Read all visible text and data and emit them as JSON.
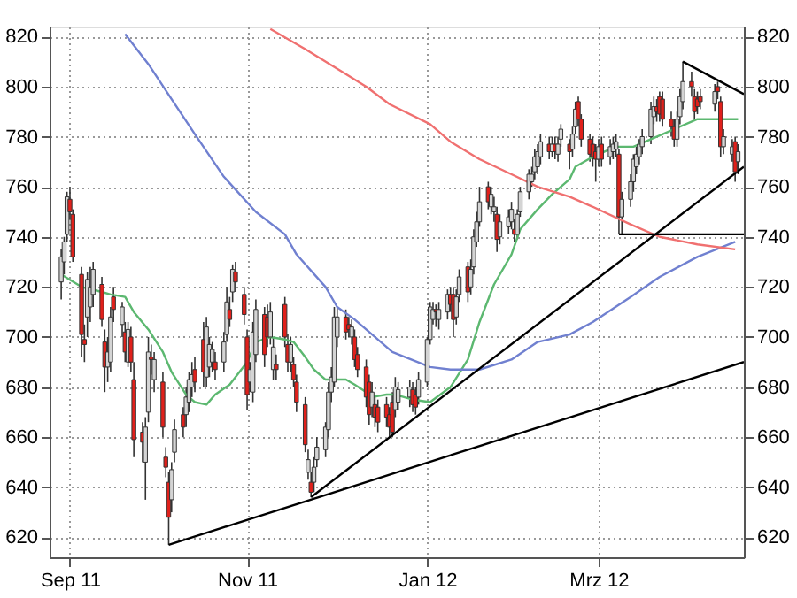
{
  "chart_data": {
    "type": "candlestick",
    "x": [
      "2011-08-29",
      "2011-08-30",
      "2011-08-31",
      "2011-09-01",
      "2011-09-02",
      "2011-09-05",
      "2011-09-06",
      "2011-09-07",
      "2011-09-08",
      "2011-09-09",
      "2011-09-12",
      "2011-09-13",
      "2011-09-14",
      "2011-09-15",
      "2011-09-16",
      "2011-09-19",
      "2011-09-20",
      "2011-09-21",
      "2011-09-22",
      "2011-09-23",
      "2011-09-26",
      "2011-09-27",
      "2011-09-28",
      "2011-09-29",
      "2011-09-30",
      "2011-10-03",
      "2011-10-04",
      "2011-10-05",
      "2011-10-06",
      "2011-10-07",
      "2011-10-10",
      "2011-10-11",
      "2011-10-12",
      "2011-10-13",
      "2011-10-14",
      "2011-10-17",
      "2011-10-18",
      "2011-10-19",
      "2011-10-20",
      "2011-10-21",
      "2011-10-24",
      "2011-10-25",
      "2011-10-26",
      "2011-10-27",
      "2011-10-28",
      "2011-10-31",
      "2011-11-01",
      "2011-11-02",
      "2011-11-03",
      "2011-11-04",
      "2011-11-07",
      "2011-11-08",
      "2011-11-09",
      "2011-11-10",
      "2011-11-11",
      "2011-11-14",
      "2011-11-15",
      "2011-11-16",
      "2011-11-17",
      "2011-11-18",
      "2011-11-21",
      "2011-11-22",
      "2011-11-23",
      "2011-11-24",
      "2011-11-25",
      "2011-11-28",
      "2011-11-29",
      "2011-11-30",
      "2011-12-01",
      "2011-12-02",
      "2011-12-05",
      "2011-12-06",
      "2011-12-07",
      "2011-12-08",
      "2011-12-09",
      "2011-12-12",
      "2011-12-13",
      "2011-12-14",
      "2011-12-15",
      "2011-12-16",
      "2011-12-19",
      "2011-12-20",
      "2011-12-21",
      "2011-12-22",
      "2011-12-23",
      "2011-12-27",
      "2011-12-28",
      "2011-12-29",
      "2011-12-30",
      "2012-01-02",
      "2012-01-03",
      "2012-01-04",
      "2012-01-05",
      "2012-01-06",
      "2012-01-09",
      "2012-01-10",
      "2012-01-11",
      "2012-01-12",
      "2012-01-13",
      "2012-01-16",
      "2012-01-17",
      "2012-01-18",
      "2012-01-19",
      "2012-01-20",
      "2012-01-23",
      "2012-01-24",
      "2012-01-25",
      "2012-01-26",
      "2012-01-27",
      "2012-01-30",
      "2012-01-31",
      "2012-02-01",
      "2012-02-02",
      "2012-02-03",
      "2012-02-06",
      "2012-02-07",
      "2012-02-08",
      "2012-02-09",
      "2012-02-10",
      "2012-02-13",
      "2012-02-14",
      "2012-02-15",
      "2012-02-16",
      "2012-02-17",
      "2012-02-20",
      "2012-02-21",
      "2012-02-22",
      "2012-02-23",
      "2012-02-24",
      "2012-02-27",
      "2012-02-28",
      "2012-02-29",
      "2012-03-01",
      "2012-03-02",
      "2012-03-05",
      "2012-03-06",
      "2012-03-07",
      "2012-03-08",
      "2012-03-09",
      "2012-03-12",
      "2012-03-13",
      "2012-03-14",
      "2012-03-15",
      "2012-03-16",
      "2012-03-19",
      "2012-03-20",
      "2012-03-21",
      "2012-03-22",
      "2012-03-23",
      "2012-03-26",
      "2012-03-27",
      "2012-03-28",
      "2012-03-29",
      "2012-03-30",
      "2012-04-02",
      "2012-04-03",
      "2012-04-04",
      "2012-04-05",
      "2012-04-10",
      "2012-04-11",
      "2012-04-12",
      "2012-04-13",
      "2012-04-16",
      "2012-04-17",
      "2012-04-18"
    ],
    "ohlc": [
      [
        722,
        735,
        715,
        732
      ],
      [
        730,
        740,
        725,
        738
      ],
      [
        741,
        758,
        738,
        756
      ],
      [
        755,
        760,
        747,
        750
      ],
      [
        749,
        751,
        730,
        732
      ],
      [
        725,
        728,
        692,
        701
      ],
      [
        699,
        705,
        690,
        697
      ],
      [
        708,
        726,
        700,
        723
      ],
      [
        712,
        728,
        706,
        720
      ],
      [
        717,
        730,
        712,
        727
      ],
      [
        721,
        724,
        704,
        707
      ],
      [
        698,
        703,
        678,
        688
      ],
      [
        688,
        700,
        682,
        694
      ],
      [
        690,
        712,
        686,
        708
      ],
      [
        716,
        720,
        706,
        711
      ],
      [
        705,
        714,
        700,
        712
      ],
      [
        702,
        706,
        690,
        694
      ],
      [
        690,
        706,
        688,
        703
      ],
      [
        700,
        704,
        686,
        690
      ],
      [
        683,
        690,
        652,
        659
      ],
      [
        662,
        666,
        650,
        658
      ],
      [
        650,
        668,
        635,
        664
      ],
      [
        670,
        700,
        666,
        694
      ],
      [
        692,
        697,
        685,
        691
      ],
      [
        683,
        694,
        678,
        691
      ],
      [
        682,
        686,
        660,
        664
      ],
      [
        652,
        656,
        644,
        648
      ],
      [
        642,
        646,
        617,
        628
      ],
      [
        635,
        650,
        630,
        647
      ],
      [
        654,
        667,
        650,
        663
      ],
      [
        669,
        672,
        660,
        664
      ],
      [
        669,
        680,
        664,
        676
      ],
      [
        674,
        686,
        670,
        683
      ],
      [
        680,
        690,
        676,
        685
      ],
      [
        687,
        692,
        678,
        682
      ],
      [
        699,
        706,
        680,
        686
      ],
      [
        684,
        708,
        680,
        704
      ],
      [
        688,
        700,
        684,
        697
      ],
      [
        690,
        698,
        686,
        695
      ],
      [
        690,
        694,
        683,
        687
      ],
      [
        690,
        702,
        686,
        698
      ],
      [
        701,
        720,
        698,
        714
      ],
      [
        711,
        716,
        704,
        707
      ],
      [
        718,
        729,
        714,
        727
      ],
      [
        726,
        730,
        718,
        722
      ],
      [
        717,
        720,
        705,
        709
      ],
      [
        700,
        703,
        671,
        677
      ],
      [
        682,
        690,
        678,
        687
      ],
      [
        678,
        706,
        674,
        702
      ],
      [
        693,
        715,
        690,
        711
      ],
      [
        709,
        712,
        688,
        693
      ],
      [
        708,
        713,
        696,
        700
      ],
      [
        700,
        714,
        697,
        710
      ],
      [
        687,
        700,
        683,
        696
      ],
      [
        689,
        693,
        683,
        687
      ],
      [
        713,
        716,
        696,
        700
      ],
      [
        697,
        701,
        686,
        690
      ],
      [
        690,
        700,
        686,
        697
      ],
      [
        689,
        692,
        680,
        683
      ],
      [
        682,
        685,
        670,
        674
      ],
      [
        673,
        676,
        654,
        657
      ],
      [
        646,
        655,
        643,
        651
      ],
      [
        642,
        646,
        636,
        638
      ],
      [
        642,
        652,
        638,
        648
      ],
      [
        651,
        660,
        648,
        656
      ],
      [
        655,
        666,
        652,
        664
      ],
      [
        663,
        682,
        660,
        678
      ],
      [
        678,
        688,
        674,
        684
      ],
      [
        682,
        712,
        680,
        708
      ],
      [
        700,
        712,
        696,
        708
      ],
      [
        708,
        711,
        699,
        702
      ],
      [
        705,
        708,
        700,
        703
      ],
      [
        700,
        707,
        697,
        704
      ],
      [
        700,
        703,
        688,
        691
      ],
      [
        693,
        696,
        684,
        687
      ],
      [
        688,
        691,
        672,
        676
      ],
      [
        682,
        685,
        665,
        669
      ],
      [
        672,
        682,
        668,
        678
      ],
      [
        673,
        676,
        664,
        668
      ],
      [
        672,
        675,
        662,
        666
      ],
      [
        673,
        676,
        664,
        668
      ],
      [
        669,
        672,
        660,
        664
      ],
      [
        674,
        678,
        660,
        662
      ],
      [
        671,
        684,
        668,
        680
      ],
      [
        674,
        682,
        671,
        679
      ],
      [
        676,
        683,
        672,
        680
      ],
      [
        679,
        682,
        670,
        673
      ],
      [
        677,
        680,
        669,
        672
      ],
      [
        676,
        686,
        673,
        683
      ],
      [
        682,
        700,
        680,
        699
      ],
      [
        699,
        714,
        697,
        712
      ],
      [
        707,
        714,
        705,
        711
      ],
      [
        711,
        713,
        704,
        710
      ],
      [
        707,
        714,
        703,
        711
      ],
      [
        710,
        719,
        707,
        717
      ],
      [
        717,
        720,
        710,
        713
      ],
      [
        717,
        720,
        700,
        707
      ],
      [
        708,
        719,
        705,
        716
      ],
      [
        717,
        727,
        714,
        724
      ],
      [
        728,
        730,
        714,
        718
      ],
      [
        720,
        731,
        717,
        727
      ],
      [
        728,
        743,
        725,
        740
      ],
      [
        738,
        750,
        736,
        746
      ],
      [
        746,
        760,
        744,
        754
      ],
      [
        760,
        762,
        751,
        754
      ],
      [
        752,
        760,
        749,
        757
      ],
      [
        750,
        756,
        746,
        752
      ],
      [
        749,
        752,
        734,
        739
      ],
      [
        740,
        749,
        737,
        746
      ],
      [
        744,
        751,
        741,
        748
      ],
      [
        746,
        754,
        743,
        751
      ],
      [
        743,
        747,
        738,
        741
      ],
      [
        741,
        751,
        739,
        749
      ],
      [
        750,
        760,
        748,
        758
      ],
      [
        758,
        767,
        755,
        765
      ],
      [
        762,
        768,
        760,
        765
      ],
      [
        766,
        775,
        763,
        772
      ],
      [
        768,
        777,
        765,
        774
      ],
      [
        772,
        781,
        769,
        778
      ],
      [
        777,
        780,
        771,
        774
      ],
      [
        774,
        780,
        772,
        777
      ],
      [
        777,
        780,
        771,
        774
      ],
      [
        773,
        780,
        770,
        777
      ],
      [
        779,
        785,
        776,
        783
      ],
      [
        777,
        779,
        767,
        774
      ],
      [
        775,
        784,
        772,
        781
      ],
      [
        784,
        794,
        781,
        791
      ],
      [
        794,
        796,
        784,
        787
      ],
      [
        787,
        789,
        776,
        779
      ],
      [
        779,
        781,
        770,
        773
      ],
      [
        777,
        780,
        768,
        772
      ],
      [
        774,
        777,
        762,
        771
      ],
      [
        771,
        779,
        768,
        776
      ],
      [
        777,
        780,
        768,
        771
      ],
      [
        772,
        779,
        769,
        776
      ],
      [
        774,
        780,
        771,
        777
      ],
      [
        775,
        781,
        772,
        778
      ],
      [
        773,
        775,
        741,
        748
      ],
      [
        748,
        758,
        741,
        755
      ],
      [
        755,
        765,
        752,
        762
      ],
      [
        762,
        773,
        758,
        771
      ],
      [
        768,
        776,
        765,
        773
      ],
      [
        772,
        779,
        769,
        777
      ],
      [
        776,
        783,
        773,
        780
      ],
      [
        780,
        794,
        777,
        791
      ],
      [
        788,
        796,
        785,
        792
      ],
      [
        792,
        795,
        786,
        790
      ],
      [
        796,
        798,
        786,
        789
      ],
      [
        795,
        798,
        784,
        787
      ],
      [
        787,
        790,
        780,
        784
      ],
      [
        784,
        787,
        776,
        779
      ],
      [
        779,
        790,
        776,
        787
      ],
      [
        788,
        799,
        785,
        796
      ],
      [
        794,
        810,
        791,
        802
      ],
      [
        802,
        806,
        796,
        800
      ],
      [
        796,
        799,
        787,
        790
      ],
      [
        795,
        798,
        789,
        792
      ],
      [
        796,
        799,
        791,
        794
      ],
      [
        793,
        801,
        790,
        798
      ],
      [
        800,
        802,
        795,
        798
      ],
      [
        794,
        796,
        772,
        776
      ],
      [
        776,
        783,
        773,
        780
      ],
      [
        773,
        779,
        770,
        776
      ],
      [
        778,
        780,
        762,
        766
      ],
      [
        770,
        777,
        765,
        774
      ]
    ],
    "colors": [
      "#d4d4d4",
      "#d4d4d4",
      "#d4d4d4",
      "#e0201b",
      "#e0201b",
      "#e0201b",
      "#e0201b",
      "#d4d4d4",
      "#d4d4d4",
      "#d4d4d4",
      "#e0201b",
      "#e0201b",
      "#d4d4d4",
      "#d4d4d4",
      "#e0201b",
      "#d4d4d4",
      "#e0201b",
      "#d4d4d4",
      "#e0201b",
      "#e0201b",
      "#e0201b",
      "#d4d4d4",
      "#d4d4d4",
      "#e0201b",
      "#d4d4d4",
      "#e0201b",
      "#e0201b",
      "#e0201b",
      "#d4d4d4",
      "#d4d4d4",
      "#e0201b",
      "#d4d4d4",
      "#d4d4d4",
      "#d4d4d4",
      "#e0201b",
      "#e0201b",
      "#d4d4d4",
      "#d4d4d4",
      "#d4d4d4",
      "#e0201b",
      "#d4d4d4",
      "#d4d4d4",
      "#e0201b",
      "#d4d4d4",
      "#e0201b",
      "#e0201b",
      "#e0201b",
      "#d4d4d4",
      "#d4d4d4",
      "#d4d4d4",
      "#e0201b",
      "#e0201b",
      "#d4d4d4",
      "#d4d4d4",
      "#e0201b",
      "#e0201b",
      "#e0201b",
      "#d4d4d4",
      "#e0201b",
      "#e0201b",
      "#e0201b",
      "#d4d4d4",
      "#e0201b",
      "#d4d4d4",
      "#d4d4d4",
      "#d4d4d4",
      "#d4d4d4",
      "#d4d4d4",
      "#d4d4d4",
      "#d4d4d4",
      "#e0201b",
      "#e0201b",
      "#d4d4d4",
      "#e0201b",
      "#e0201b",
      "#e0201b",
      "#e0201b",
      "#d4d4d4",
      "#e0201b",
      "#e0201b",
      "#e0201b",
      "#e0201b",
      "#e0201b",
      "#d4d4d4",
      "#d4d4d4",
      "#d4d4d4",
      "#e0201b",
      "#e0201b",
      "#d4d4d4",
      "#d4d4d4",
      "#d4d4d4",
      "#d4d4d4",
      "#e0201b",
      "#d4d4d4",
      "#d4d4d4",
      "#e0201b",
      "#e0201b",
      "#d4d4d4",
      "#d4d4d4",
      "#e0201b",
      "#d4d4d4",
      "#d4d4d4",
      "#d4d4d4",
      "#d4d4d4",
      "#e0201b",
      "#d4d4d4",
      "#d4d4d4",
      "#e0201b",
      "#d4d4d4",
      "#d4d4d4",
      "#d4d4d4",
      "#e0201b",
      "#d4d4d4",
      "#d4d4d4",
      "#d4d4d4",
      "#d4d4d4",
      "#d4d4d4",
      "#d4d4d4",
      "#d4d4d4",
      "#e0201b",
      "#d4d4d4",
      "#e0201b",
      "#d4d4d4",
      "#d4d4d4",
      "#e0201b",
      "#d4d4d4",
      "#d4d4d4",
      "#e0201b",
      "#e0201b",
      "#e0201b",
      "#e0201b",
      "#e0201b",
      "#d4d4d4",
      "#e0201b",
      "#d4d4d4",
      "#d4d4d4",
      "#d4d4d4",
      "#e0201b",
      "#d4d4d4",
      "#d4d4d4",
      "#d4d4d4",
      "#d4d4d4",
      "#d4d4d4",
      "#d4d4d4",
      "#d4d4d4",
      "#d4d4d4",
      "#e0201b",
      "#e0201b",
      "#e0201b",
      "#e0201b",
      "#e0201b",
      "#d4d4d4",
      "#d4d4d4",
      "#d4d4d4",
      "#e0201b",
      "#e0201b",
      "#e0201b",
      "#e0201b",
      "#d4d4d4",
      "#e0201b",
      "#e0201b",
      "#d4d4d4",
      "#d4d4d4",
      "#e0201b",
      "#d4d4d4"
    ],
    "series": [
      {
        "type": "line",
        "color": "#5cb870",
        "x": [
          "2011-08-29",
          "2011-09-05",
          "2011-09-12",
          "2011-09-15",
          "2011-09-20",
          "2011-09-23",
          "2011-09-28",
          "2011-10-03",
          "2011-10-06",
          "2011-10-11",
          "2011-10-14",
          "2011-10-18",
          "2011-10-21",
          "2011-10-26",
          "2011-11-01",
          "2011-11-04",
          "2011-11-09",
          "2011-11-14",
          "2011-11-17",
          "2011-11-21",
          "2011-11-24",
          "2011-11-28",
          "2011-11-30",
          "2011-12-05",
          "2011-12-08",
          "2011-12-12",
          "2011-12-14",
          "2011-12-19",
          "2011-12-22",
          "2011-12-28",
          "2012-01-03",
          "2012-01-10",
          "2012-01-16",
          "2012-01-20",
          "2012-01-25",
          "2012-01-31",
          "2012-02-03",
          "2012-02-09",
          "2012-02-14",
          "2012-02-20",
          "2012-02-22",
          "2012-02-28",
          "2012-03-07",
          "2012-03-13",
          "2012-03-19",
          "2012-03-27",
          "2012-04-04",
          "2012-04-11",
          "2012-04-18"
        ],
        "values": [
          725,
          720,
          718,
          717,
          716,
          710,
          703,
          694,
          686,
          677,
          674,
          673,
          677,
          681,
          690,
          698,
          700,
          699,
          698,
          692,
          687,
          683,
          683,
          683,
          681,
          678,
          676,
          677,
          677,
          675,
          674,
          680,
          691,
          706,
          721,
          733,
          743,
          751,
          757,
          763,
          768,
          772,
          776,
          776,
          779,
          783,
          787,
          787,
          787
        ]
      },
      {
        "type": "line",
        "color": "#7080d0",
        "x": [
          "2011-09-20",
          "2011-09-28",
          "2011-10-06",
          "2011-10-14",
          "2011-10-24",
          "2011-11-04",
          "2011-11-14",
          "2011-11-18",
          "2011-11-28",
          "2011-12-02",
          "2011-12-08",
          "2011-12-15",
          "2011-12-21",
          "2012-01-03",
          "2012-01-10",
          "2012-01-20",
          "2012-01-31",
          "2012-02-09",
          "2012-02-20",
          "2012-02-28",
          "2012-03-12",
          "2012-03-22",
          "2012-04-04",
          "2012-04-17"
        ],
        "values": [
          821,
          809,
          795,
          781,
          764,
          750,
          741,
          733,
          720,
          712,
          707,
          700,
          694,
          688,
          687,
          687,
          691,
          698,
          701,
          706,
          716,
          724,
          732,
          738
        ]
      },
      {
        "type": "line",
        "color": "#f07070",
        "x": [
          "2011-11-09",
          "2011-11-21",
          "2011-12-05",
          "2011-12-12",
          "2011-12-20",
          "2012-01-03",
          "2012-01-10",
          "2012-01-20",
          "2012-01-31",
          "2012-02-09",
          "2012-02-20",
          "2012-02-28",
          "2012-03-12",
          "2012-03-22",
          "2012-04-04",
          "2012-04-17"
        ],
        "values": [
          823,
          815,
          805,
          800,
          793,
          785,
          778,
          771,
          765,
          760,
          756,
          752,
          745,
          740,
          737,
          735
        ]
      },
      {
        "type": "line",
        "color": "#000000",
        "x": [
          "2011-10-05",
          "2012-04-20"
        ],
        "values": [
          617,
          690
        ]
      },
      {
        "type": "line",
        "color": "#000000",
        "x": [
          "2011-11-23",
          "2012-04-20"
        ],
        "values": [
          636,
          768
        ]
      },
      {
        "type": "line",
        "color": "#000000",
        "x": [
          "2012-03-08",
          "2012-04-20"
        ],
        "values": [
          741,
          741
        ]
      },
      {
        "type": "line",
        "color": "#000000",
        "x": [
          "2012-03-30",
          "2012-04-20"
        ],
        "values": [
          810,
          797
        ]
      }
    ],
    "xlim": [
      "2011-08-25",
      "2012-04-20"
    ],
    "xticks": [
      {
        "value": "2011-09-01",
        "label": "Sep 11"
      },
      {
        "value": "2011-11-01",
        "label": "Nov 11"
      },
      {
        "value": "2012-01-02",
        "label": "Jan 12"
      },
      {
        "value": "2012-03-01",
        "label": "Mrz 12"
      }
    ],
    "ylim": [
      612,
      824
    ],
    "yticks": [
      620,
      640,
      660,
      680,
      700,
      720,
      740,
      760,
      780,
      800,
      820
    ],
    "y2lim": [
      612,
      824
    ],
    "y2ticks": [
      620,
      640,
      660,
      680,
      700,
      720,
      740,
      760,
      780,
      800,
      820
    ],
    "grid": true
  }
}
